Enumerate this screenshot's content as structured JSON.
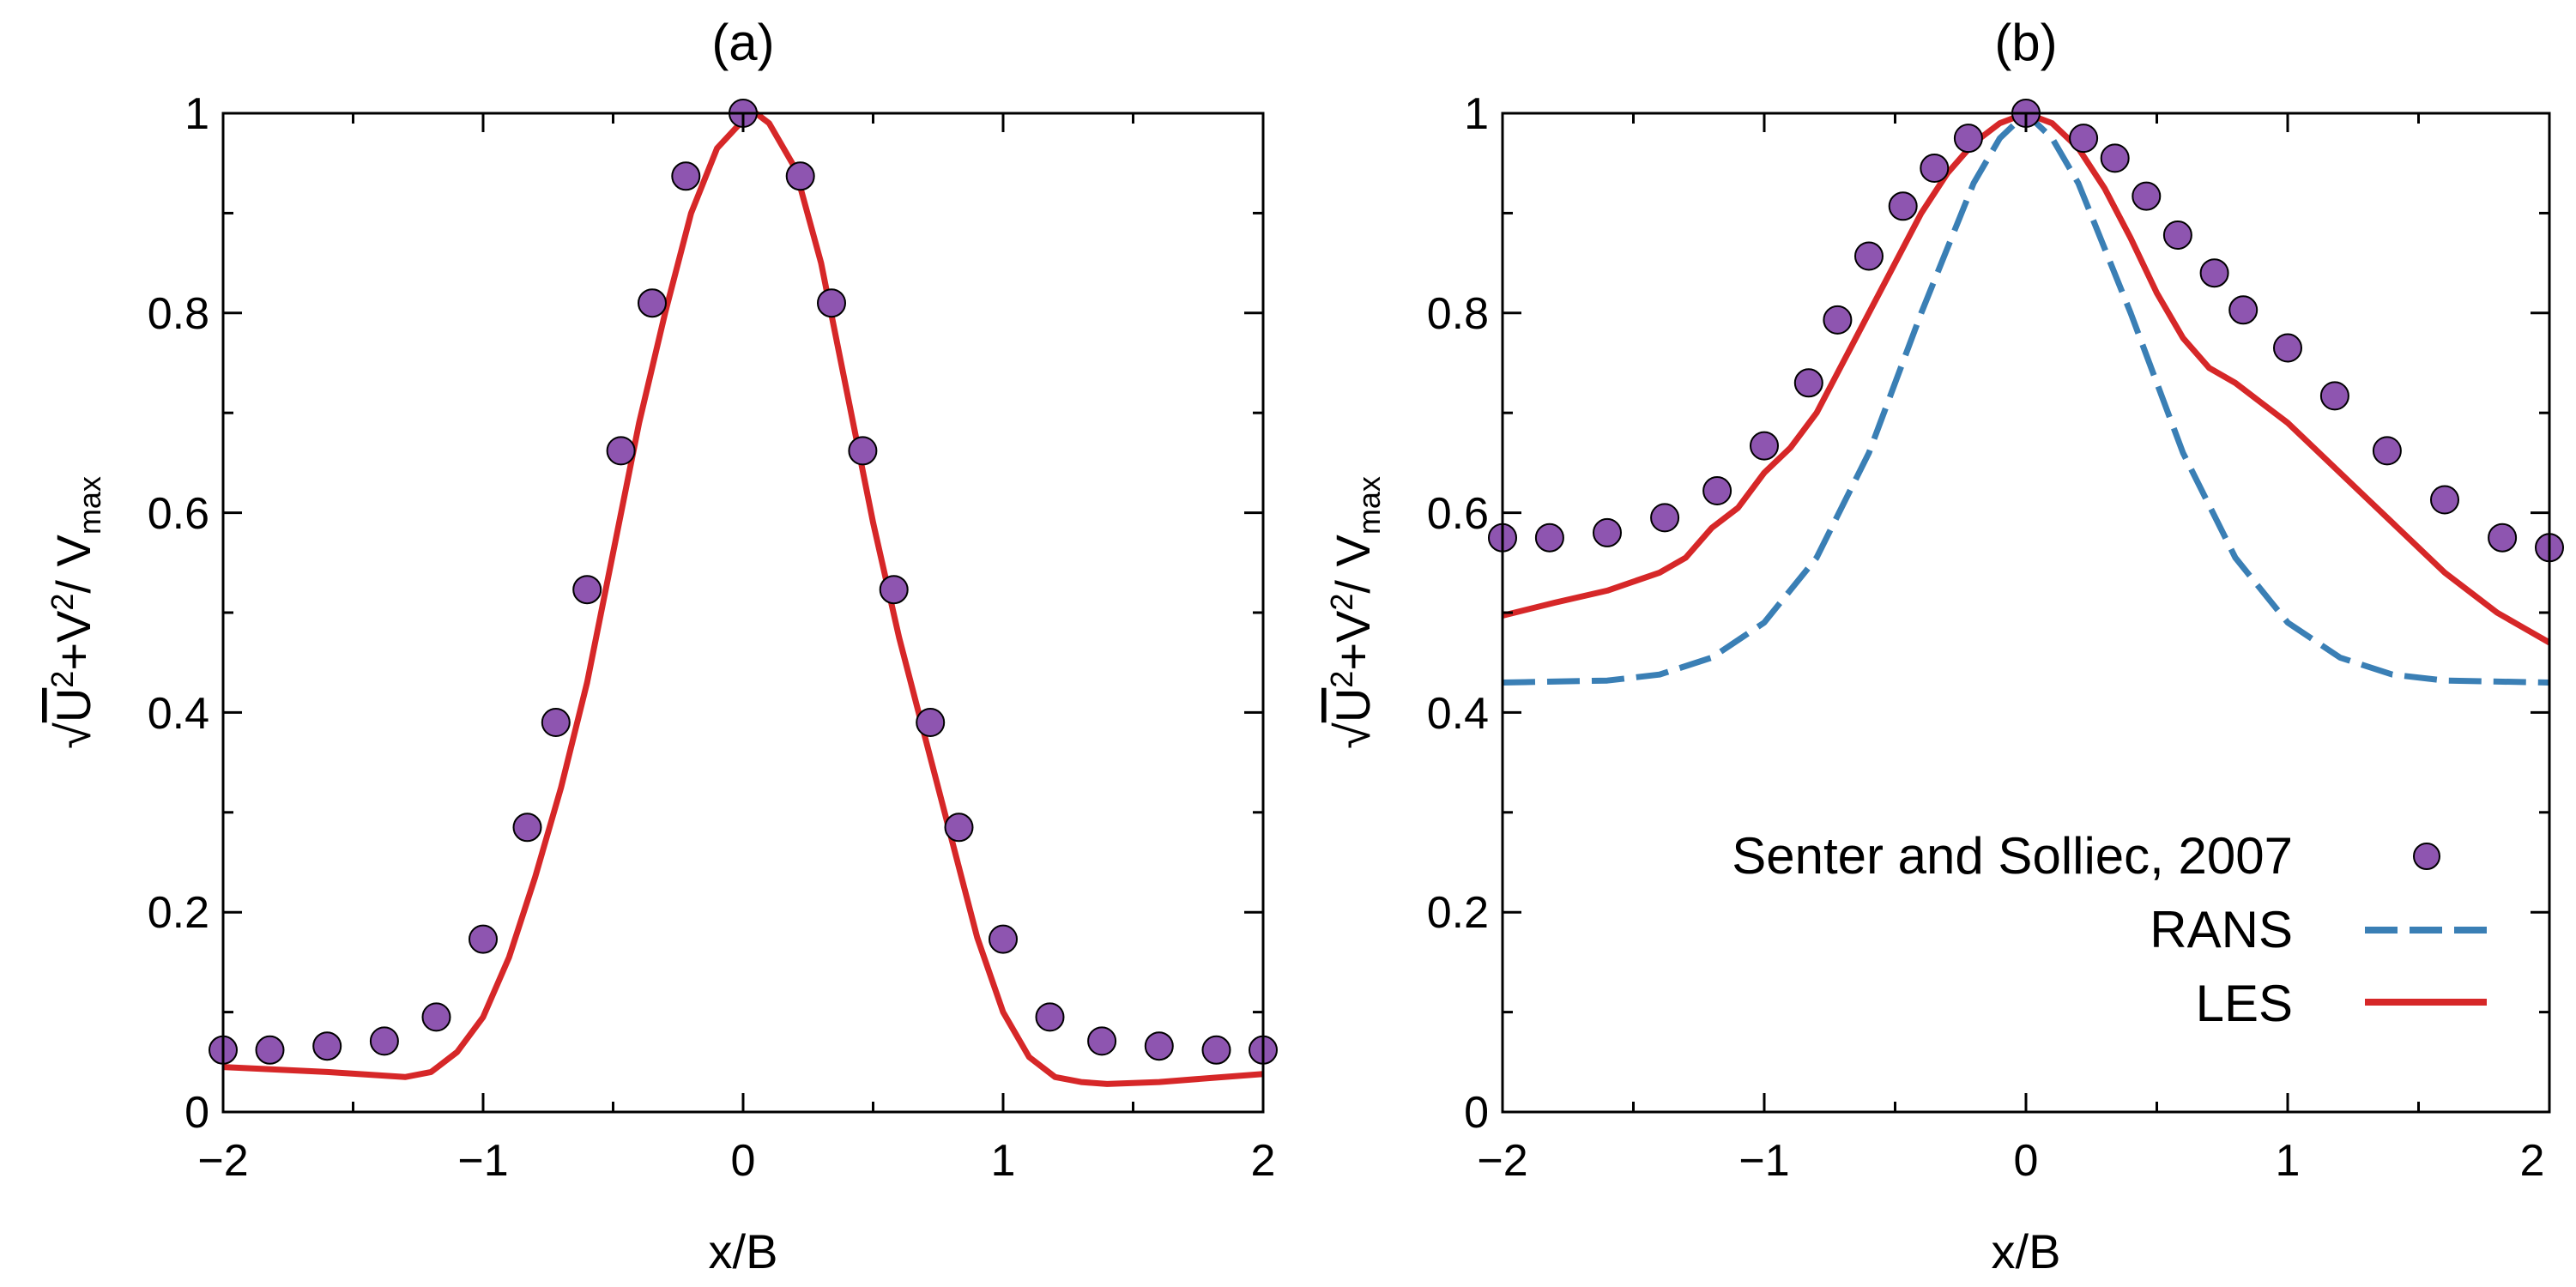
{
  "colors": {
    "les": "#d62728",
    "rans": "#3a7fb5",
    "points_fill": "#8e55b0",
    "points_edge": "#000000",
    "axes": "#000000",
    "background": "#ffffff"
  },
  "chart_data": [
    {
      "type": "line",
      "panel_title": "(a)",
      "xlabel": "x/B",
      "ylabel": "√U²+V²/ V_max",
      "ylabel_parts": {
        "sqrt": "√",
        "u": "U",
        "exp1": "2",
        "plus_v": "+V",
        "exp2": "2",
        "slash_v": "/ V",
        "sub": "max"
      },
      "xlim": [
        -2,
        2
      ],
      "ylim": [
        0,
        1
      ],
      "xticks": [
        -2,
        -1,
        0,
        1,
        2
      ],
      "xtick_labels": [
        "−2",
        "−1",
        "0",
        "1",
        "2"
      ],
      "yticks": [
        0,
        0.2,
        0.4,
        0.6,
        0.8,
        1
      ],
      "ytick_labels": [
        "0",
        "0.2",
        "0.4",
        "0.6",
        "0.8",
        "1"
      ],
      "series": [
        {
          "name": "Senter and Solliec, 2007",
          "style": "points",
          "x": [
            -2.0,
            -1.82,
            -1.6,
            -1.38,
            -1.18,
            -1.0,
            -0.83,
            -0.72,
            -0.6,
            -0.47,
            -0.35,
            -0.22,
            0.0,
            0.22,
            0.34,
            0.46,
            0.58,
            0.72,
            0.83,
            1.0,
            1.18,
            1.38,
            1.6,
            1.82,
            2.0
          ],
          "y": [
            0.062,
            0.062,
            0.066,
            0.071,
            0.095,
            0.173,
            0.285,
            0.39,
            0.523,
            0.662,
            0.81,
            0.937,
            1.0,
            0.937,
            0.81,
            0.662,
            0.523,
            0.39,
            0.285,
            0.173,
            0.095,
            0.071,
            0.066,
            0.062,
            0.062
          ]
        },
        {
          "name": "LES",
          "style": "solid",
          "x": [
            -2.0,
            -1.6,
            -1.3,
            -1.2,
            -1.1,
            -1.0,
            -0.9,
            -0.8,
            -0.7,
            -0.6,
            -0.5,
            -0.4,
            -0.3,
            -0.2,
            -0.1,
            0.0,
            0.05,
            0.1,
            0.2,
            0.3,
            0.4,
            0.5,
            0.6,
            0.7,
            0.8,
            0.9,
            1.0,
            1.1,
            1.2,
            1.3,
            1.4,
            1.6,
            1.8,
            2.0
          ],
          "y": [
            0.045,
            0.04,
            0.035,
            0.04,
            0.06,
            0.095,
            0.155,
            0.235,
            0.325,
            0.43,
            0.56,
            0.69,
            0.8,
            0.9,
            0.965,
            0.993,
            1.0,
            0.99,
            0.945,
            0.85,
            0.72,
            0.59,
            0.475,
            0.375,
            0.275,
            0.175,
            0.1,
            0.055,
            0.035,
            0.03,
            0.028,
            0.03,
            0.034,
            0.038
          ]
        }
      ]
    },
    {
      "type": "line",
      "panel_title": "(b)",
      "xlabel": "x/B",
      "ylabel": "√U²+V²/ V_max",
      "ylabel_parts": {
        "sqrt": "√",
        "u": "U",
        "exp1": "2",
        "plus_v": "+V",
        "exp2": "2",
        "slash_v": "/ V",
        "sub": "max"
      },
      "xlim": [
        -2,
        2
      ],
      "ylim": [
        0,
        1
      ],
      "xticks": [
        -2,
        -1,
        0,
        1,
        2
      ],
      "xtick_labels": [
        "−2",
        "−1",
        "0",
        "1",
        "2"
      ],
      "yticks": [
        0,
        0.2,
        0.4,
        0.6,
        0.8,
        1
      ],
      "ytick_labels": [
        "0",
        "0.2",
        "0.4",
        "0.6",
        "0.8",
        "1"
      ],
      "legend_position": "bottom-right",
      "series": [
        {
          "name": "Senter and Solliec, 2007",
          "style": "points",
          "x": [
            -2.0,
            -1.82,
            -1.6,
            -1.38,
            -1.18,
            -1.0,
            -0.83,
            -0.72,
            -0.6,
            -0.47,
            -0.35,
            -0.22,
            0.0,
            0.22,
            0.34,
            0.46,
            0.58,
            0.72,
            0.83,
            1.0,
            1.18,
            1.38,
            1.6,
            1.82,
            2.0
          ],
          "y": [
            0.575,
            0.575,
            0.58,
            0.595,
            0.622,
            0.667,
            0.73,
            0.793,
            0.857,
            0.907,
            0.945,
            0.975,
            1.0,
            0.975,
            0.955,
            0.917,
            0.878,
            0.84,
            0.803,
            0.765,
            0.717,
            0.662,
            0.613,
            0.575,
            0.565
          ]
        },
        {
          "name": "RANS",
          "style": "dashed",
          "x": [
            -2.0,
            -1.6,
            -1.4,
            -1.2,
            -1.0,
            -0.8,
            -0.6,
            -0.4,
            -0.2,
            -0.1,
            0.0,
            0.1,
            0.2,
            0.4,
            0.6,
            0.8,
            1.0,
            1.2,
            1.4,
            1.6,
            2.0
          ],
          "y": [
            0.43,
            0.432,
            0.438,
            0.455,
            0.49,
            0.555,
            0.66,
            0.8,
            0.93,
            0.975,
            1.0,
            0.975,
            0.93,
            0.8,
            0.66,
            0.555,
            0.49,
            0.455,
            0.438,
            0.432,
            0.43
          ]
        },
        {
          "name": "LES",
          "style": "solid",
          "x": [
            -2.0,
            -1.8,
            -1.6,
            -1.4,
            -1.3,
            -1.2,
            -1.1,
            -1.0,
            -0.9,
            -0.8,
            -0.7,
            -0.6,
            -0.5,
            -0.4,
            -0.3,
            -0.2,
            -0.1,
            0.0,
            0.1,
            0.2,
            0.3,
            0.4,
            0.5,
            0.6,
            0.7,
            0.8,
            0.9,
            1.0,
            1.1,
            1.2,
            1.3,
            1.4,
            1.5,
            1.6,
            1.7,
            1.8,
            1.9,
            2.0
          ],
          "y": [
            0.497,
            0.51,
            0.522,
            0.54,
            0.555,
            0.585,
            0.605,
            0.64,
            0.665,
            0.7,
            0.75,
            0.8,
            0.85,
            0.9,
            0.94,
            0.97,
            0.99,
            1.0,
            0.99,
            0.965,
            0.925,
            0.875,
            0.82,
            0.775,
            0.745,
            0.73,
            0.71,
            0.69,
            0.665,
            0.64,
            0.615,
            0.59,
            0.565,
            0.54,
            0.52,
            0.5,
            0.485,
            0.47
          ]
        }
      ]
    }
  ]
}
